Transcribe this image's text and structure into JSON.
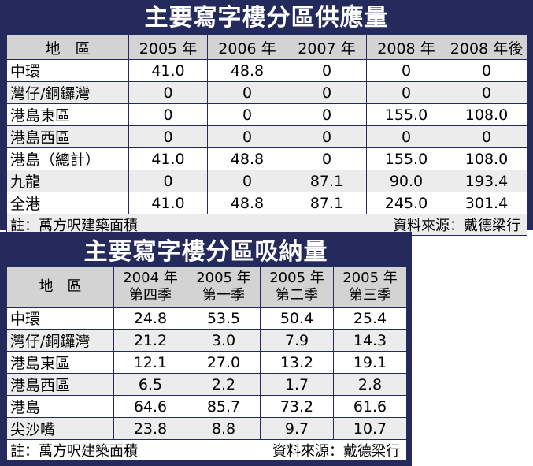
{
  "supply": {
    "title": "主要寫字樓分區供應量",
    "headers": [
      "地　區",
      "2005 年",
      "2006 年",
      "2007 年",
      "2008 年",
      "2008 年後"
    ],
    "rows": [
      {
        "district": "中環",
        "values": [
          "41.0",
          "48.8",
          "0",
          "0",
          "0"
        ]
      },
      {
        "district": "灣仔/銅鑼灣",
        "values": [
          "0",
          "0",
          "0",
          "0",
          "0"
        ]
      },
      {
        "district": "港島東區",
        "values": [
          "0",
          "0",
          "0",
          "155.0",
          "108.0"
        ]
      },
      {
        "district": "港島西區",
        "values": [
          "0",
          "0",
          "0",
          "0",
          "0"
        ]
      },
      {
        "district": "港島（總計）",
        "values": [
          "41.0",
          "48.8",
          "0",
          "155.0",
          "108.0"
        ]
      },
      {
        "district": "九龍",
        "values": [
          "0",
          "0",
          "87.1",
          "90.0",
          "193.4"
        ]
      },
      {
        "district": "全港",
        "values": [
          "41.0",
          "48.8",
          "87.1",
          "245.0",
          "301.4"
        ]
      }
    ],
    "note": "註：萬方呎建築面積",
    "source": "資料來源：戴德梁行"
  },
  "absorption": {
    "title": "主要寫字樓分區吸納量",
    "headers": [
      {
        "line1": "地　區",
        "line2": ""
      },
      {
        "line1": "2004 年",
        "line2": "第四季"
      },
      {
        "line1": "2005 年",
        "line2": "第一季"
      },
      {
        "line1": "2005 年",
        "line2": "第二季"
      },
      {
        "line1": "2005 年",
        "line2": "第三季"
      }
    ],
    "rows": [
      {
        "district": "中環",
        "values": [
          "24.8",
          "53.5",
          "50.4",
          "25.4"
        ]
      },
      {
        "district": "灣仔/銅鑼灣",
        "values": [
          "21.2",
          "3.0",
          "7.9",
          "14.3"
        ]
      },
      {
        "district": "港島東區",
        "values": [
          "12.1",
          "27.0",
          "13.2",
          "19.1"
        ]
      },
      {
        "district": "港島西區",
        "values": [
          "6.5",
          "2.2",
          "1.7",
          "2.8"
        ]
      },
      {
        "district": "港島",
        "values": [
          "64.6",
          "85.7",
          "73.2",
          "61.6"
        ]
      },
      {
        "district": "尖沙嘴",
        "values": [
          "23.8",
          "8.8",
          "9.7",
          "10.7"
        ]
      }
    ],
    "note": "註：萬方呎建築面積",
    "source": "資料來源：戴德梁行"
  }
}
